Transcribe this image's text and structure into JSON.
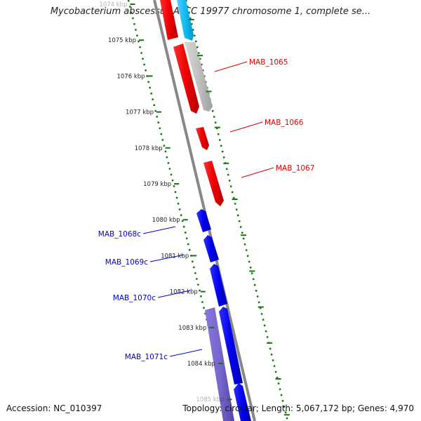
{
  "title": "Mycobacterium abscessus ATCC 19977 chromosome 1, complete se...",
  "accession": "Accession: NC_010397",
  "summary": "Topology: circular; Length: 5,067,172 bp; Genes: 4,970",
  "ticks": [
    {
      "kbp": 1074,
      "label": "1074 kbp"
    },
    {
      "kbp": 1075,
      "label": "1075 kbp"
    },
    {
      "kbp": 1076,
      "label": "1076 kbp"
    },
    {
      "kbp": 1077,
      "label": "1077 kbp"
    },
    {
      "kbp": 1078,
      "label": "1078 kbp"
    },
    {
      "kbp": 1079,
      "label": "1079 kbp"
    },
    {
      "kbp": 1080,
      "label": "1080 kbp"
    },
    {
      "kbp": 1081,
      "label": "1081 kbp"
    },
    {
      "kbp": 1082,
      "label": "1082 kbp"
    },
    {
      "kbp": 1083,
      "label": "1083 kbp"
    },
    {
      "kbp": 1084,
      "label": "1084 kbp"
    },
    {
      "kbp": 1085,
      "label": "1085 kbp"
    }
  ],
  "gene_labels": [
    {
      "name": "MAB_1065",
      "color": "#dd0000",
      "side": "right"
    },
    {
      "name": "MAB_1066",
      "color": "#dd0000",
      "side": "right"
    },
    {
      "name": "MAB_1067",
      "color": "#dd0000",
      "side": "right"
    },
    {
      "name": "MAB_1068c",
      "color": "#0000cc",
      "side": "left"
    },
    {
      "name": "MAB_1069c",
      "color": "#0000cc",
      "side": "left"
    },
    {
      "name": "MAB_1070c",
      "color": "#0000cc",
      "side": "left"
    },
    {
      "name": "MAB_1071c",
      "color": "#0000cc",
      "side": "left"
    }
  ],
  "colors": {
    "forward_gene": "#ee0000",
    "reverse_gene": "#0000ee",
    "forward_feature_grey": "#c0c0c0",
    "forward_feature_cyan": "#11bbee",
    "reverse_feature_purple": "#7766cc",
    "backbone": "#888888",
    "dotted_ring": "#117711"
  }
}
